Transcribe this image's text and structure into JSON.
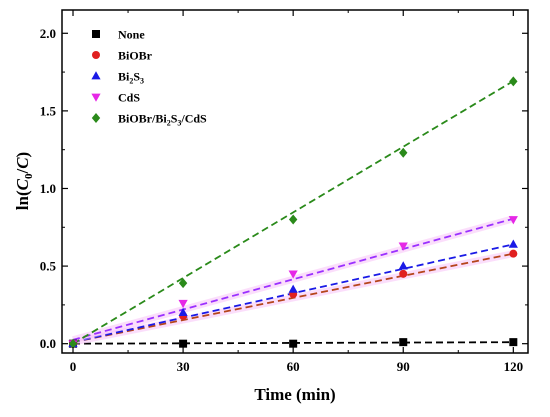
{
  "chart_data": {
    "type": "scatter",
    "xlabel": "Time (min)",
    "ylabel_parts": [
      "ln(",
      "C",
      "0",
      "/",
      "C",
      ")"
    ],
    "xlim": [
      -3,
      124
    ],
    "ylim": [
      -0.06,
      2.15
    ],
    "x_ticks": [
      0,
      30,
      60,
      90,
      120
    ],
    "x_tick_labels": [
      "0",
      "30",
      "60",
      "90",
      "120"
    ],
    "y_ticks": [
      0.0,
      0.5,
      1.0,
      1.5,
      2.0
    ],
    "y_tick_labels": [
      "0.0",
      "0.5",
      "1.0",
      "1.5",
      "2.0"
    ],
    "legend_position": "top-left",
    "series": [
      {
        "name": "None",
        "legend": [
          {
            "t": "None"
          }
        ],
        "marker": "square",
        "color": "#000000",
        "fit": {
          "slope": 8e-05,
          "intercept": 0.0
        },
        "x": [
          0,
          30,
          60,
          90,
          120
        ],
        "y": [
          0.0,
          0.0,
          0.0,
          0.01,
          0.01
        ]
      },
      {
        "name": "BiOBr",
        "legend": [
          {
            "t": "BiOBr"
          }
        ],
        "marker": "circle",
        "color": "#e02020",
        "fit_color": "#b5451b",
        "fit": {
          "slope": 0.00475,
          "intercept": 0.01
        },
        "x": [
          0,
          30,
          60,
          90,
          120
        ],
        "y": [
          0.0,
          0.18,
          0.32,
          0.45,
          0.58
        ]
      },
      {
        "name": "Bi2S3",
        "legend": [
          {
            "t": "Bi"
          },
          {
            "t": "2",
            "sub": true
          },
          {
            "t": "S"
          },
          {
            "t": "3",
            "sub": true
          }
        ],
        "marker": "triangle-up",
        "color": "#1a1ae6",
        "fit": {
          "slope": 0.00525,
          "intercept": 0.01
        },
        "x": [
          0,
          30,
          60,
          90,
          120
        ],
        "y": [
          0.0,
          0.2,
          0.35,
          0.5,
          0.64
        ]
      },
      {
        "name": "CdS",
        "legend": [
          {
            "t": "CdS"
          }
        ],
        "marker": "triangle-down",
        "color": "#e628e6",
        "fit_color": "#9b30ff",
        "fit": {
          "slope": 0.0065,
          "intercept": 0.025
        },
        "x": [
          0,
          30,
          60,
          90,
          120
        ],
        "y": [
          0.0,
          0.26,
          0.45,
          0.63,
          0.8
        ]
      },
      {
        "name": "BiOBr/Bi2S3/CdS",
        "legend": [
          {
            "t": "BiOBr/Bi"
          },
          {
            "t": "2",
            "sub": true
          },
          {
            "t": "S"
          },
          {
            "t": "3",
            "sub": true
          },
          {
            "t": "/CdS"
          }
        ],
        "marker": "diamond",
        "color": "#2a8a1a",
        "fit": {
          "slope": 0.0141,
          "intercept": 0.0
        },
        "x": [
          0,
          30,
          60,
          90,
          120
        ],
        "y": [
          0.0,
          0.39,
          0.8,
          1.23,
          1.69
        ]
      }
    ]
  }
}
